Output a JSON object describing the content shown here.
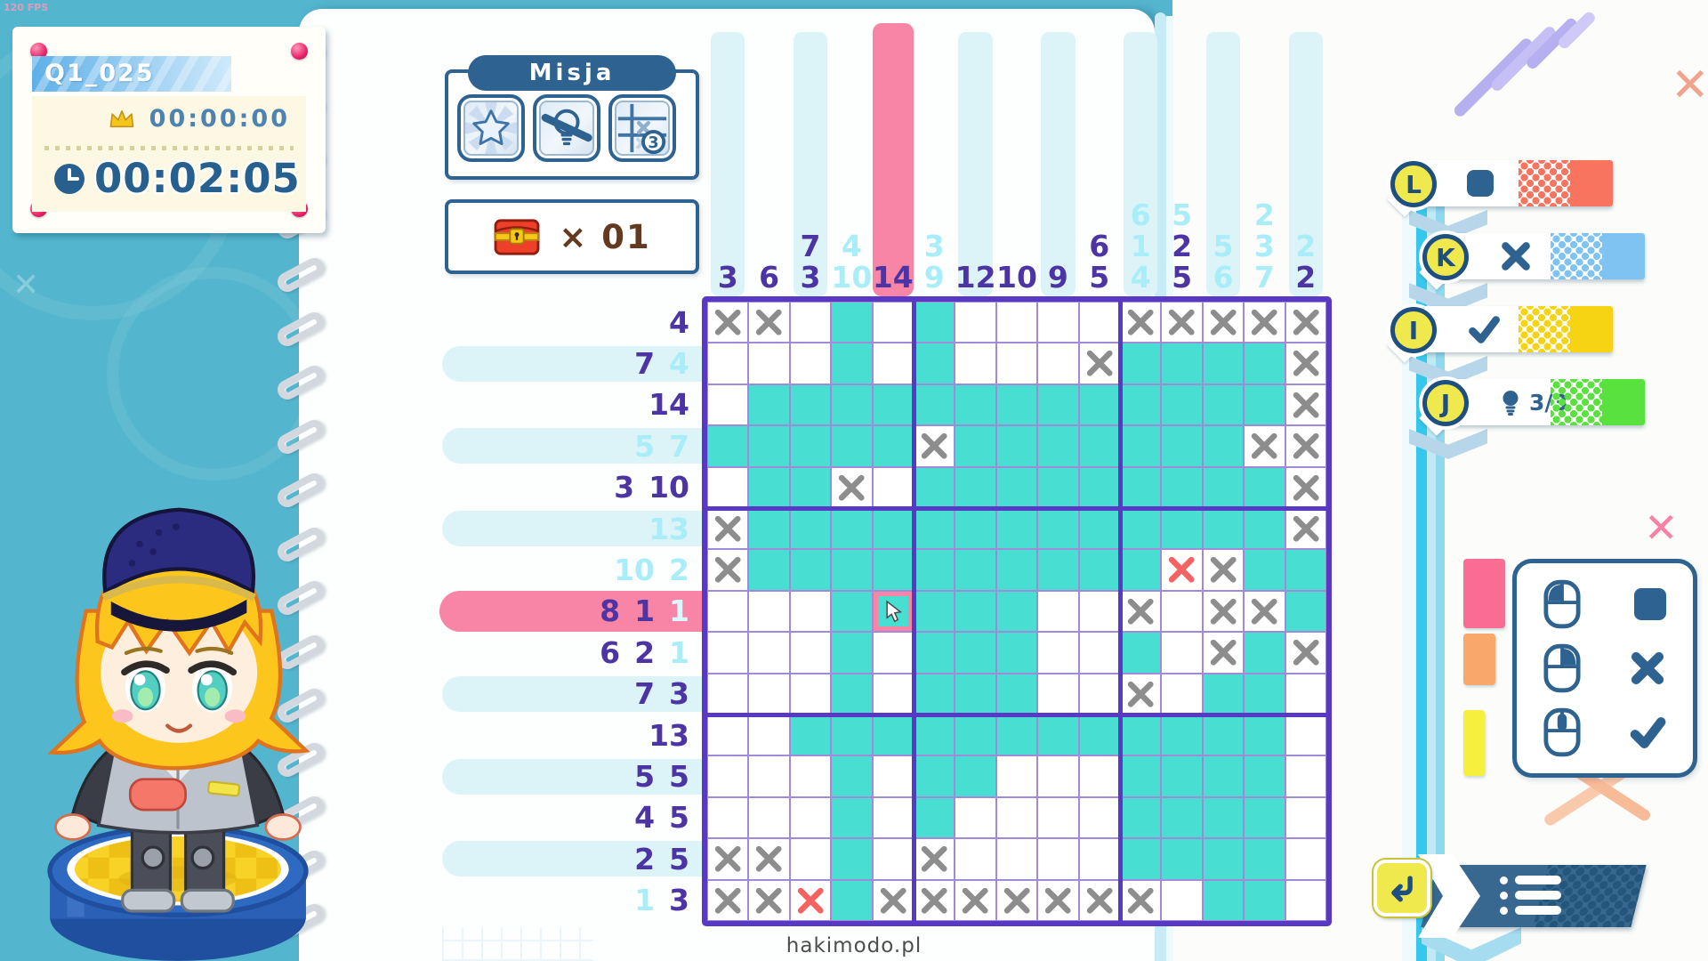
{
  "meta": {
    "fps_label": "120 FPS",
    "watermark": "hakimodo.pl"
  },
  "colors": {
    "teal-bg": "#54b6ce",
    "accent": "#2e6391",
    "grid-thick": "#5838c4",
    "grid-thin": "#a18ad8",
    "cell-fill": "#48ded2",
    "pink": "#f884a6",
    "stripe-cyan": "#dcf4f8",
    "clue": "#4c34a4",
    "clue-done": "#a9edf8",
    "clue-done-on-pink": "#ddf5fc",
    "x-gray": "#8d8d8d",
    "x-red": "#f56262",
    "key-yellow": "#efe94e",
    "cream": "#fdf8e3"
  },
  "info_card": {
    "level_id": "Q1_025",
    "best_time": "00:00:00",
    "current_time": "00:02:05",
    "crown_icon": "crown-icon",
    "clock_icon": "clock-icon"
  },
  "mission": {
    "title": "Misja",
    "badges": [
      {
        "icon": "star-burst-icon"
      },
      {
        "icon": "no-hints-icon"
      },
      {
        "icon": "limited-mistakes-icon",
        "count": "3"
      }
    ]
  },
  "treasure": {
    "icon": "treasure-chest-icon",
    "label": "× 01"
  },
  "key_controls": [
    {
      "key": "L",
      "action": "fill-square",
      "glyph": "■",
      "tail_color": "#f8745e"
    },
    {
      "key": "K",
      "action": "cross",
      "glyph": "✕",
      "tail_color": "#7ec3f2"
    },
    {
      "key": "I",
      "action": "check",
      "glyph": "✓",
      "tail_color": "#f6d313"
    },
    {
      "key": "J",
      "action": "hint",
      "glyph": "💡",
      "label": "3/3",
      "tail_color": "#59e23e"
    }
  ],
  "mouse_legend": [
    {
      "button": "left-click",
      "action": "fill-square",
      "glyph": "■"
    },
    {
      "button": "right-click",
      "action": "cross",
      "glyph": "✕"
    },
    {
      "button": "middle-click",
      "action": "check",
      "glyph": "✓"
    }
  ],
  "menu": {
    "icon": "list-menu-icon",
    "key_icon": "return-key-icon"
  },
  "puzzle": {
    "size": 15,
    "highlighted_row": 8,
    "highlighted_col": 5,
    "cursor": {
      "row": 8,
      "col": 5
    },
    "col_clues": [
      [
        "3"
      ],
      [
        "6"
      ],
      [
        "7",
        "3"
      ],
      [
        "4*",
        "10*"
      ],
      [
        "14"
      ],
      [
        "3*",
        "9*"
      ],
      [
        "12"
      ],
      [
        "10"
      ],
      [
        "9"
      ],
      [
        "6",
        "5"
      ],
      [
        "6*",
        "1*",
        "4*"
      ],
      [
        "5*",
        "2",
        "5"
      ],
      [
        "5*",
        "6*"
      ],
      [
        "2*",
        "3*",
        "7*"
      ],
      [
        "2*",
        "2"
      ]
    ],
    "row_clues": [
      [
        "4"
      ],
      [
        "7",
        "4*"
      ],
      [
        "14"
      ],
      [
        "5*",
        "7*"
      ],
      [
        "3",
        "10"
      ],
      [
        "13*"
      ],
      [
        "10*",
        "2*"
      ],
      [
        "8",
        "1",
        "1*"
      ],
      [
        "6",
        "2",
        "1*"
      ],
      [
        "7",
        "3"
      ],
      [
        "13"
      ],
      [
        "5",
        "5"
      ],
      [
        "4",
        "5"
      ],
      [
        "2",
        "5"
      ],
      [
        "1*",
        "3"
      ]
    ],
    "rows": [
      "XX.F.F....XXXXX",
      "...F.F...XFFFFX",
      ".FFFFFFFFFFFFFX",
      "FFFFFXFFFFFFFXX",
      ".FFX.FFFFFFFFFX",
      "XFFFFFFFFFFFFFX",
      "XFFFFFFFFFFRXFF",
      "...FCFFF..X.XXF",
      "...F.FFF..F.XFX",
      "...F.FFF..X.FF.",
      "..FFFFFFFFFFFF.",
      "...F.FF...FFFF.",
      "...F.F....FFFF.",
      "XX.F.X....FFFF.",
      "XXRFXXXXXXX.FF."
    ],
    "legend": {
      ".": "empty",
      "F": "filled",
      "X": "cross",
      "R": "error-cross",
      "C": "filled-cursor"
    }
  }
}
